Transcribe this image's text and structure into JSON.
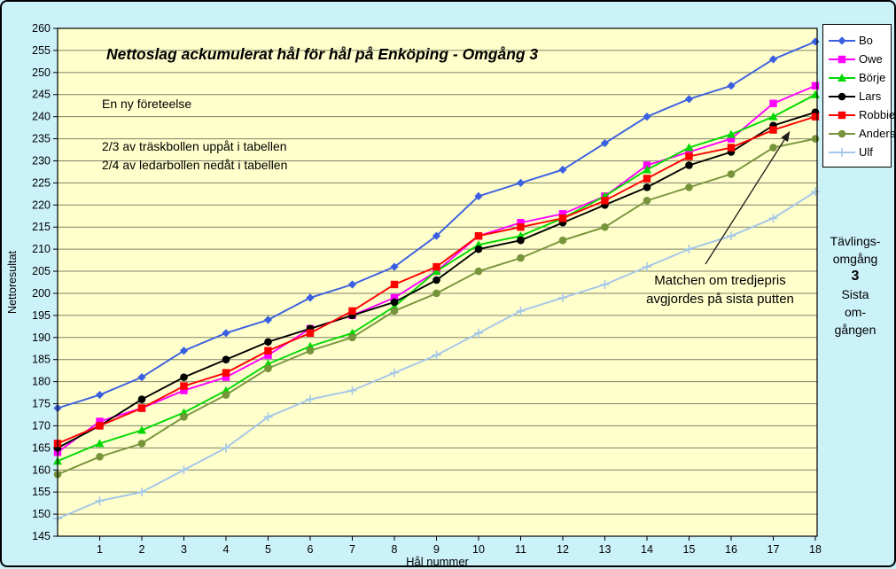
{
  "chart_data": {
    "type": "line",
    "title": "Nettoslag ackumulerat hål för hål på Enköping - Omgång 3",
    "xlabel": "Hål nummer",
    "ylabel": "Nettoresultat",
    "ylim": [
      145,
      260
    ],
    "ytick_step": 5,
    "grid": "horizontal",
    "plot_bg": "#FFFFCC",
    "grid_color": "#80806A",
    "x_tick_labels": [
      "1",
      "2",
      "3",
      "4",
      "5",
      "6",
      "7",
      "8",
      "9",
      "10",
      "11",
      "12",
      "13",
      "14",
      "15",
      "16",
      "17",
      "18"
    ],
    "x_note": "first point of each series sits on the y-axis (carry-over total before hole 1)",
    "legend_position": "top-right",
    "series": [
      {
        "name": "Bo",
        "color": "#3A5FE0",
        "marker": "diamond",
        "values": [
          174,
          177,
          181,
          187,
          191,
          194,
          199,
          202,
          206,
          213,
          222,
          225,
          228,
          234,
          240,
          244,
          247,
          253,
          257
        ]
      },
      {
        "name": "Owe",
        "color": "#FF00FF",
        "marker": "square",
        "values": [
          164,
          171,
          174,
          178,
          181,
          186,
          192,
          195,
          199,
          205,
          213,
          216,
          218,
          222,
          229,
          232,
          235,
          243,
          247
        ]
      },
      {
        "name": "Börje",
        "color": "#00D900",
        "marker": "triangle",
        "values": [
          162,
          166,
          169,
          173,
          178,
          184,
          188,
          191,
          197,
          205,
          211,
          213,
          217,
          222,
          228,
          233,
          236,
          240,
          245
        ]
      },
      {
        "name": "Lars",
        "color": "#000000",
        "marker": "circle",
        "values": [
          165,
          170,
          176,
          181,
          185,
          189,
          192,
          195,
          198,
          203,
          210,
          212,
          216,
          220,
          224,
          229,
          232,
          238,
          241
        ]
      },
      {
        "name": "Robbie",
        "color": "#FF0000",
        "marker": "square",
        "values": [
          166,
          170,
          174,
          179,
          182,
          187,
          191,
          196,
          202,
          206,
          213,
          215,
          217,
          221,
          226,
          231,
          233,
          237,
          240
        ]
      },
      {
        "name": "Anders",
        "color": "#77943B",
        "marker": "circle",
        "values": [
          159,
          163,
          166,
          172,
          177,
          183,
          187,
          190,
          196,
          200,
          205,
          208,
          212,
          215,
          221,
          224,
          227,
          233,
          235
        ]
      },
      {
        "name": "Ulf",
        "color": "#A3C6E8",
        "marker": "plus",
        "values": [
          149,
          153,
          155,
          160,
          165,
          172,
          176,
          178,
          182,
          186,
          191,
          196,
          199,
          202,
          206,
          210,
          213,
          217,
          223
        ]
      }
    ],
    "annotations": {
      "note1": "En ny företeelse",
      "note2": "2/3 av träskbollen uppåt i tabellen",
      "note3": "2/4 av ledarbollen nedåt i tabellen",
      "arrow_line1": "Matchen om tredjepris",
      "arrow_line2": "avgjordes på sista putten"
    }
  },
  "side_panel": {
    "lines": [
      "Tävlings-",
      "omgång",
      "3",
      "Sista",
      "om-",
      "gången"
    ]
  }
}
